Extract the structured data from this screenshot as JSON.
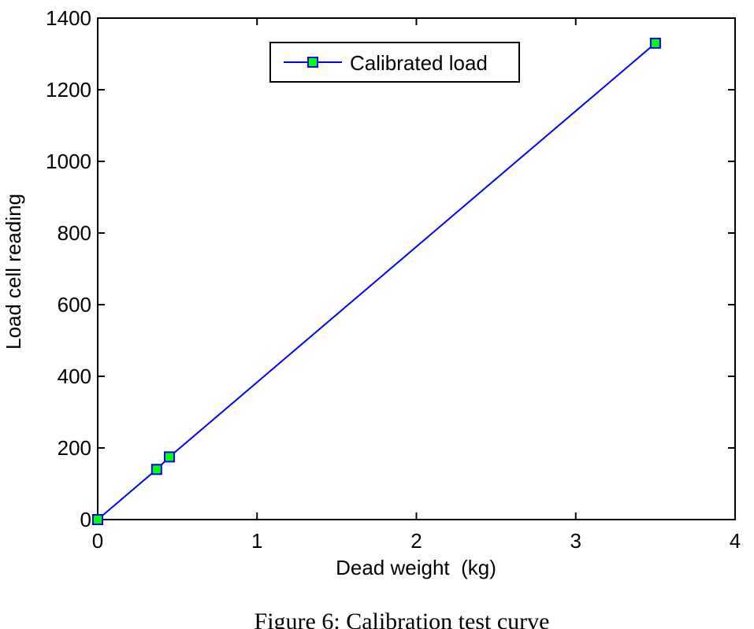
{
  "chart_data": {
    "type": "line",
    "title": "",
    "xlabel": "Dead weight  (kg)",
    "ylabel": "Load cell reading",
    "xlim": [
      0,
      4
    ],
    "ylim": [
      0,
      1400
    ],
    "xticks": [
      0,
      1,
      2,
      3,
      4
    ],
    "yticks": [
      0,
      200,
      400,
      600,
      800,
      1000,
      1200,
      1400
    ],
    "xtick_labels": [
      "0",
      "1",
      "2",
      "3",
      "4"
    ],
    "ytick_labels": [
      "0",
      "200",
      "400",
      "600",
      "800",
      "1000",
      "1200",
      "1400"
    ],
    "grid": false,
    "legend_position": "top-center",
    "series": [
      {
        "name": "Calibrated load",
        "x": [
          0,
          0.37,
          0.45,
          3.5
        ],
        "y": [
          0,
          140,
          175,
          1330
        ],
        "line_color": "#0000ff",
        "marker": "square",
        "marker_fill": "#00ff00",
        "marker_edge": "#0000ff"
      }
    ]
  },
  "caption": "Figure 6: Calibration test curve"
}
